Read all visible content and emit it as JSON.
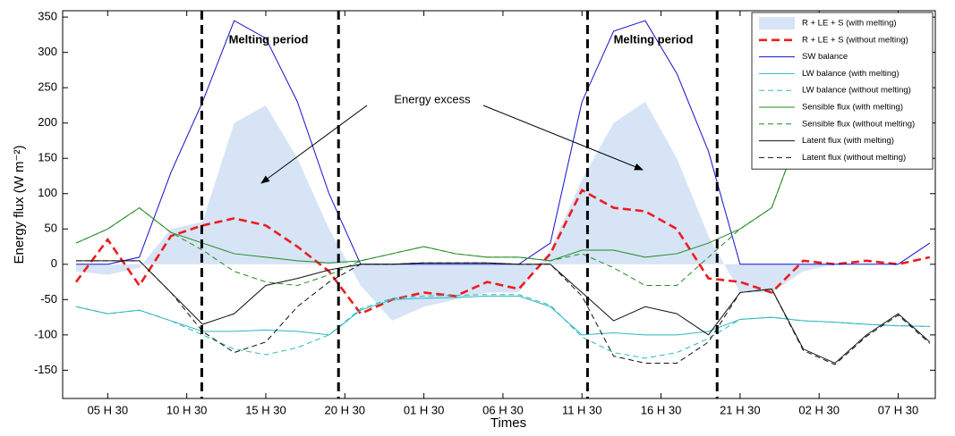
{
  "chart_data": {
    "type": "line",
    "x_label": "Times",
    "y_label": "Energy flux (W m⁻²)",
    "xlim": [
      -2.85,
      52.35
    ],
    "ylim": [
      -190,
      359
    ],
    "xticks": [
      {
        "value": 0,
        "label": "05 H 30"
      },
      {
        "value": 5,
        "label": "10 H 30"
      },
      {
        "value": 10,
        "label": "15 H 30"
      },
      {
        "value": 15,
        "label": "20 H 30"
      },
      {
        "value": 20,
        "label": "01 H 30"
      },
      {
        "value": 25,
        "label": "06 H 30"
      },
      {
        "value": 30,
        "label": "11 H 30"
      },
      {
        "value": 35,
        "label": "16 H 30"
      },
      {
        "value": 40,
        "label": "21 H 30"
      },
      {
        "value": 45,
        "label": "02 H 30"
      },
      {
        "value": 50,
        "label": "07 H 30"
      }
    ],
    "yticks": [
      -150,
      -100,
      -50,
      0,
      50,
      100,
      150,
      200,
      250,
      300,
      350
    ],
    "legend": "upper right",
    "melting_bounds": [
      5.95,
      14.6,
      30.35,
      38.55
    ],
    "annotations": [
      "Melting period",
      "Melting period",
      "Energy excess"
    ],
    "x": [
      -2,
      0,
      2,
      4,
      6,
      8,
      10,
      12,
      14,
      16,
      18,
      20,
      22,
      24,
      26,
      28,
      30,
      32,
      34,
      36,
      38,
      40,
      42,
      44,
      46,
      48,
      50,
      52
    ],
    "series": [
      {
        "name": "R + LE + S (with melting)",
        "color": "#d6e4f6",
        "style": "area",
        "values": [
          -10,
          -15,
          -5,
          50,
          60,
          200,
          225,
          150,
          50,
          -30,
          -80,
          -60,
          -50,
          -40,
          -40,
          20,
          120,
          200,
          230,
          150,
          40,
          -40,
          -40,
          -10,
          0,
          0,
          0,
          0
        ]
      },
      {
        "name": "R + LE + S (without melting)",
        "color": "#ee1c1c",
        "style": "thick-dashed",
        "values": [
          -25,
          35,
          -30,
          40,
          55,
          65,
          55,
          25,
          -10,
          -70,
          -50,
          -40,
          -45,
          -25,
          -35,
          15,
          105,
          80,
          75,
          50,
          -20,
          -25,
          -40,
          5,
          0,
          5,
          0,
          10
        ]
      },
      {
        "name": "SW balance",
        "color": "#1111cc",
        "style": "solid",
        "values": [
          0,
          0,
          10,
          130,
          230,
          345,
          320,
          230,
          100,
          0,
          0,
          0,
          0,
          0,
          0,
          30,
          230,
          330,
          345,
          270,
          160,
          0,
          0,
          0,
          0,
          0,
          0,
          30
        ]
      },
      {
        "name": "LW balance (with melting)",
        "color": "#2ab7c0",
        "style": "solid",
        "values": [
          -60,
          -70,
          -65,
          -80,
          -95,
          -95,
          -93,
          -95,
          -100,
          -65,
          -50,
          -48,
          -47,
          -45,
          -45,
          -60,
          -100,
          -97,
          -100,
          -100,
          -95,
          -78,
          -75,
          -80,
          -82,
          -85,
          -87,
          -88
        ]
      },
      {
        "name": "LW balance (without melting)",
        "color": "#2ab7c0",
        "style": "dashed",
        "values": [
          -60,
          -70,
          -65,
          -80,
          -100,
          -120,
          -128,
          -118,
          -100,
          -63,
          -48,
          -45,
          -44,
          -43,
          -43,
          -58,
          -103,
          -125,
          -133,
          -125,
          -105,
          -78,
          -75,
          -80,
          -82,
          -85,
          -87,
          -88
        ]
      },
      {
        "name": "Sensible flux (with melting)",
        "color": "#1e8c1e",
        "style": "solid",
        "values": [
          30,
          50,
          80,
          45,
          30,
          15,
          10,
          5,
          2,
          5,
          15,
          25,
          15,
          10,
          10,
          5,
          20,
          20,
          10,
          15,
          30,
          50,
          80,
          200,
          250,
          260,
          260,
          250
        ]
      },
      {
        "name": "Sensible flux (without melting)",
        "color": "#1e8c1e",
        "style": "dashed",
        "values": [
          30,
          50,
          80,
          45,
          20,
          -10,
          -25,
          -30,
          -15,
          5,
          15,
          25,
          15,
          10,
          10,
          5,
          15,
          -5,
          -30,
          -30,
          10,
          50,
          80,
          200,
          250,
          260,
          260,
          250
        ]
      },
      {
        "name": "Latent flux (with melting)",
        "color": "#111111",
        "style": "solid",
        "values": [
          5,
          5,
          5,
          -40,
          -85,
          -70,
          -30,
          -20,
          -8,
          0,
          0,
          2,
          2,
          2,
          0,
          0,
          -40,
          -80,
          -60,
          -70,
          -100,
          -40,
          -35,
          -120,
          -140,
          -100,
          -70,
          -110
        ]
      },
      {
        "name": "Latent flux (without melting)",
        "color": "#111111",
        "style": "dashed",
        "values": [
          5,
          5,
          5,
          -40,
          -95,
          -125,
          -110,
          -60,
          -25,
          0,
          0,
          2,
          2,
          2,
          0,
          0,
          -45,
          -130,
          -140,
          -140,
          -110,
          -40,
          -35,
          -122,
          -142,
          -102,
          -72,
          -112
        ]
      }
    ]
  }
}
